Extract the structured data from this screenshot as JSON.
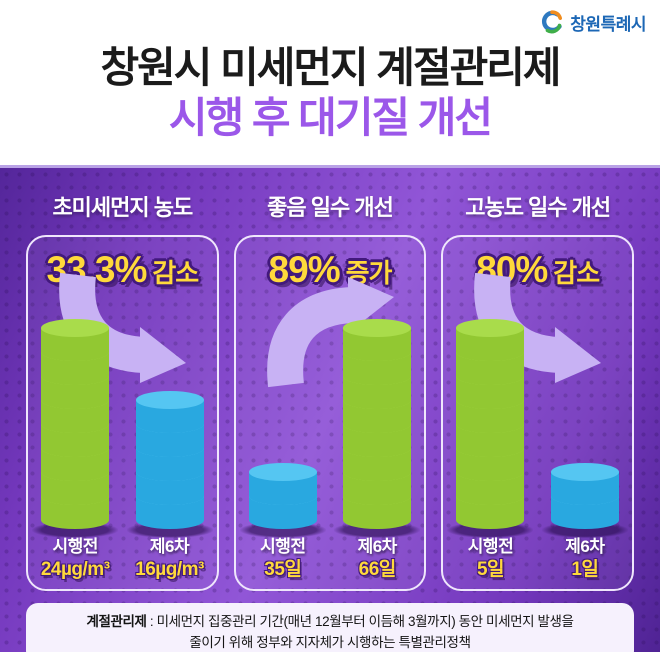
{
  "logo": {
    "text": "창원특례시"
  },
  "header": {
    "title_line1": "창원시 미세먼지 계절관리제",
    "title_line2": "시행 후 대기질 개선"
  },
  "panels": [
    {
      "heading": "초미세먼지 농도",
      "stat_value": "33.3%",
      "stat_label": "감소",
      "trend": "down",
      "bars": [
        {
          "label": "시행전",
          "value": "24µg/m³",
          "coins": 8,
          "color": "green"
        },
        {
          "label": "제6차",
          "value": "16µg/m³",
          "coins": 5,
          "color": "blue"
        }
      ]
    },
    {
      "heading": "좋음 일수 개선",
      "stat_value": "89%",
      "stat_label": "증가",
      "trend": "up",
      "bars": [
        {
          "label": "시행전",
          "value": "35일",
          "coins": 2,
          "color": "blue"
        },
        {
          "label": "제6차",
          "value": "66일",
          "coins": 8,
          "color": "green"
        }
      ]
    },
    {
      "heading": "고농도 일수 개선",
      "stat_value": "80%",
      "stat_label": "감소",
      "trend": "down",
      "bars": [
        {
          "label": "시행전",
          "value": "5일",
          "coins": 8,
          "color": "green"
        },
        {
          "label": "제6차",
          "value": "1일",
          "coins": 2,
          "color": "blue"
        }
      ]
    }
  ],
  "footnote": {
    "term": "계절관리제",
    "separator": " : ",
    "line1_rest": "미세먼지 집중관리 기간(매년 12월부터 이듬해 3월까지) 동안 미세먼지 발생을",
    "line2": "줄이기 위해 정부와 지자체가 시행하는 특별관리정책"
  },
  "colors": {
    "background_purple": "#7b3cc2",
    "panel_border": "#efe6fc",
    "accent_yellow": "#ffd93b",
    "title_purple": "#9b57e9",
    "logo_blue": "#1c67b5",
    "arrow": "#c8b2f4",
    "green_body": "#92c832",
    "green_top": "#a9dc4b",
    "blue_body": "#29a8e0",
    "blue_top": "#55c6f2"
  },
  "chart_data": [
    {
      "type": "bar",
      "title": "초미세먼지 농도",
      "categories": [
        "시행전",
        "제6차"
      ],
      "values": [
        24,
        16
      ],
      "unit": "µg/m³",
      "change": "33.3% 감소",
      "bar_colors": [
        "#92c832",
        "#29a8e0"
      ]
    },
    {
      "type": "bar",
      "title": "좋음 일수 개선",
      "categories": [
        "시행전",
        "제6차"
      ],
      "values": [
        35,
        66
      ],
      "unit": "일",
      "change": "89% 증가",
      "bar_colors": [
        "#29a8e0",
        "#92c832"
      ]
    },
    {
      "type": "bar",
      "title": "고농도 일수 개선",
      "categories": [
        "시행전",
        "제6차"
      ],
      "values": [
        5,
        1
      ],
      "unit": "일",
      "change": "80% 감소",
      "bar_colors": [
        "#92c832",
        "#29a8e0"
      ]
    }
  ]
}
